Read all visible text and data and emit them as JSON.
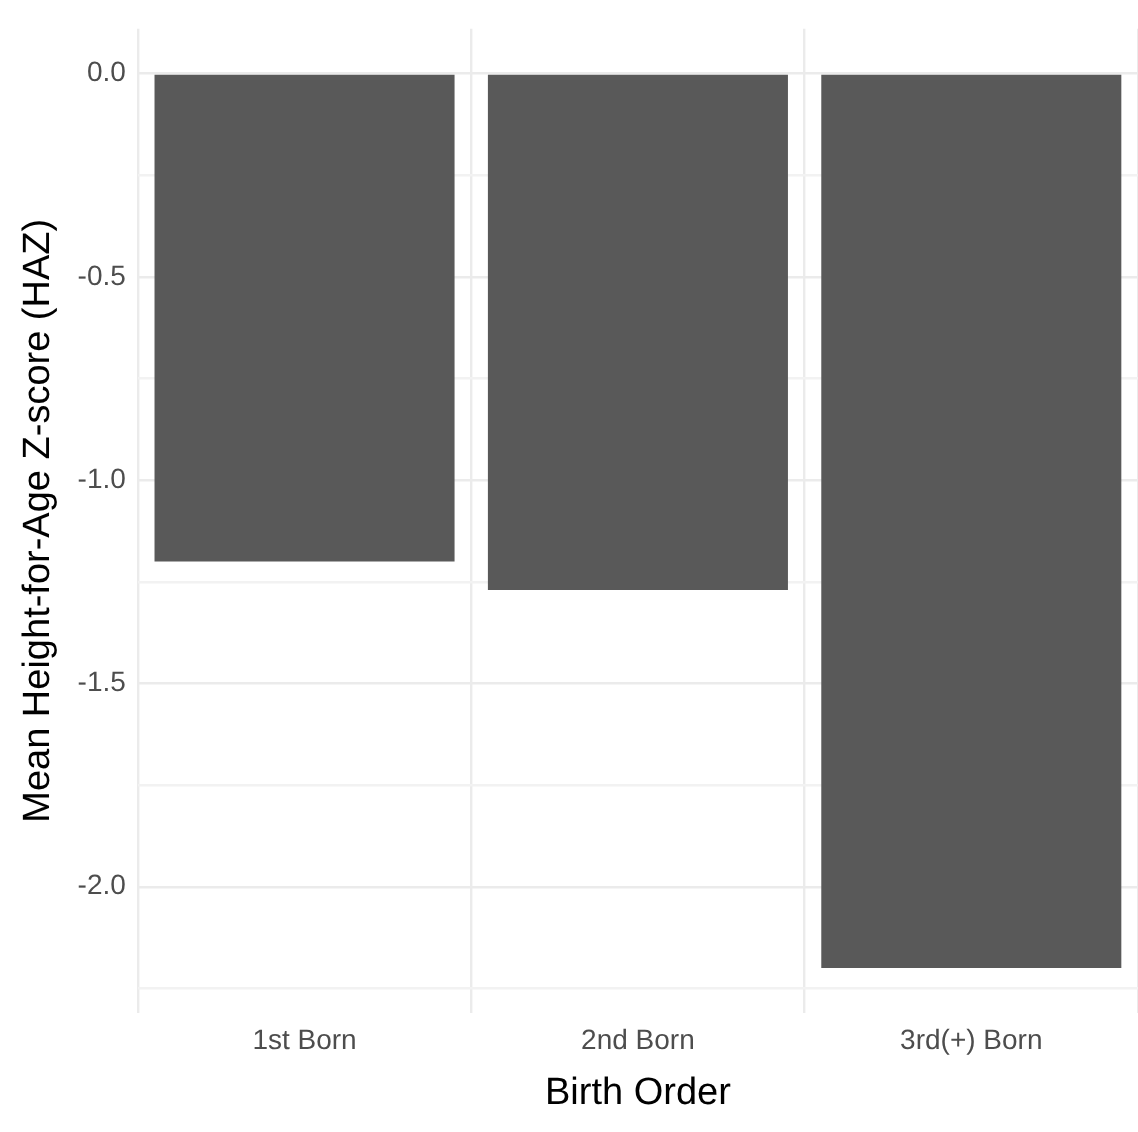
{
  "chart_data": {
    "type": "bar",
    "xlabel": "Birth Order",
    "ylabel": "Mean Height-for-Age Z-score (HAZ)",
    "categories": [
      "1st Born",
      "2nd Born",
      "3rd(+) Born"
    ],
    "values": [
      -1.2,
      -1.27,
      -2.2
    ],
    "color": "#595959",
    "ylim": [
      -2.31,
      0.11
    ],
    "yticks": [
      {
        "value": -2.25,
        "label": null
      },
      {
        "value": -2,
        "label": "-2.0"
      },
      {
        "value": -1.75,
        "label": null
      },
      {
        "value": -1.5,
        "label": "-1.5"
      },
      {
        "value": -1.25,
        "label": null
      },
      {
        "value": -1,
        "label": "-1.0"
      },
      {
        "value": -0.75,
        "label": null
      },
      {
        "value": -0.5,
        "label": "-0.5"
      },
      {
        "value": -0.25,
        "label": null
      },
      {
        "value": 0,
        "label": "0.0"
      }
    ],
    "grid": true
  }
}
